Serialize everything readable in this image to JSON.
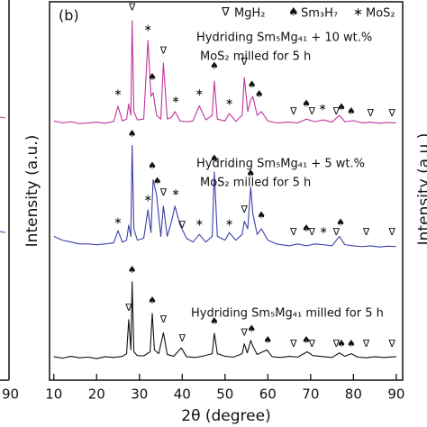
{
  "chart_data": {
    "type": "line",
    "panel_label": "(b)",
    "xlabel": "2θ (degree)",
    "ylabel": "Intensity (a.u.)",
    "xlim": [
      9,
      91.5
    ],
    "xticks": [
      10,
      20,
      30,
      40,
      50,
      60,
      70,
      80,
      90
    ],
    "ylim": [
      0,
      100
    ],
    "left_panel": {
      "xtick": "90"
    },
    "right_panel": {
      "ylabel": "Intensity (a.u.)"
    },
    "phases": [
      {
        "symbol": "∇",
        "name": "MgH₂"
      },
      {
        "symbol": "♠",
        "name": "Sm₃H₇"
      },
      {
        "symbol": "∗",
        "name": "MoS₂"
      }
    ],
    "series": [
      {
        "color": "#c0359e",
        "label_lines": [
          "Hydriding Sm₅Mg₄₁ + 10 wt.%",
          "MoS₂ milled for 5 h"
        ],
        "x": [
          10,
          12,
          14,
          16,
          18,
          20,
          22,
          24,
          25,
          26,
          27,
          27.5,
          28,
          28.3,
          28.7,
          29.5,
          31,
          32,
          32.7,
          33.2,
          34,
          35,
          35.6,
          36.5,
          37.5,
          38.3,
          39.5,
          41,
          42.5,
          44,
          45.5,
          47,
          47.5,
          48.2,
          50,
          51,
          52.5,
          54,
          54.5,
          55.3,
          56,
          56.5,
          57.5,
          58.5,
          60,
          62,
          65,
          67,
          69,
          71,
          73,
          75,
          76.7,
          78,
          80,
          82,
          84,
          86,
          88,
          90
        ],
        "values": [
          68.5,
          68,
          68.3,
          67.8,
          68,
          68.2,
          67.9,
          68.4,
          72.4,
          68.5,
          69,
          73,
          70,
          95,
          71,
          68.8,
          69,
          89.8,
          75,
          76,
          70,
          69,
          83.8,
          69,
          69.5,
          71,
          68.5,
          68.3,
          68.5,
          72.5,
          68.8,
          70,
          79,
          69,
          68.5,
          70.5,
          68.4,
          70,
          80,
          71,
          74,
          75,
          70,
          71,
          68.5,
          68,
          68.2,
          68,
          69,
          68.3,
          68.8,
          68.2,
          70,
          68.3,
          68.6,
          68,
          68.2,
          67.9,
          68.1,
          68
        ],
        "markers": [
          {
            "x": 25,
            "y": 76,
            "phase": 2
          },
          {
            "x": 28.3,
            "y": 98.5,
            "phase": 0
          },
          {
            "x": 32,
            "y": 93,
            "phase": 2
          },
          {
            "x": 33,
            "y": 80,
            "phase": 1
          },
          {
            "x": 35.6,
            "y": 87,
            "phase": 0
          },
          {
            "x": 38.5,
            "y": 74,
            "phase": 2
          },
          {
            "x": 44,
            "y": 76,
            "phase": 2
          },
          {
            "x": 47.5,
            "y": 83,
            "phase": 1
          },
          {
            "x": 51,
            "y": 73.5,
            "phase": 2
          },
          {
            "x": 54.5,
            "y": 84,
            "phase": 0
          },
          {
            "x": 56.3,
            "y": 78,
            "phase": 1
          },
          {
            "x": 58,
            "y": 75.5,
            "phase": 1
          },
          {
            "x": 66,
            "y": 71,
            "phase": 0
          },
          {
            "x": 69,
            "y": 73,
            "phase": 1
          },
          {
            "x": 70.3,
            "y": 71,
            "phase": 0
          },
          {
            "x": 72.8,
            "y": 72,
            "phase": 2
          },
          {
            "x": 76,
            "y": 71,
            "phase": 0
          },
          {
            "x": 77.2,
            "y": 72,
            "phase": 1
          },
          {
            "x": 79.5,
            "y": 71,
            "phase": 1
          },
          {
            "x": 84,
            "y": 70.5,
            "phase": 0
          },
          {
            "x": 89,
            "y": 70.5,
            "phase": 0
          }
        ]
      },
      {
        "color": "#3b3fa8",
        "label_lines": [
          "Hydriding Sm₅Mg₄₁ + 5 wt.%",
          "MoS₂ milled for 5 h"
        ],
        "x": [
          10,
          12,
          14,
          16,
          18,
          20,
          22,
          24,
          25,
          26,
          27,
          27.5,
          28,
          28.3,
          28.7,
          29.5,
          31,
          32,
          32.7,
          33.2,
          34,
          35,
          35.6,
          36.5,
          37.5,
          38.3,
          39.5,
          41,
          42.5,
          44,
          45.5,
          47,
          47.5,
          48.2,
          50,
          51,
          52.5,
          54,
          54.5,
          55.3,
          56,
          56.5,
          57.5,
          58.5,
          60,
          62,
          65,
          67,
          69,
          71,
          73,
          75,
          76.7,
          78,
          80,
          82,
          84,
          86,
          88,
          90
        ],
        "values": [
          38,
          37,
          36.5,
          36,
          36,
          35.8,
          36,
          36.3,
          39.5,
          36.5,
          37,
          41,
          38,
          62,
          40,
          37,
          37.5,
          45,
          39,
          53,
          49,
          38,
          46,
          38,
          42,
          46,
          41,
          37.5,
          36.5,
          38.5,
          36.5,
          38,
          55,
          38,
          37,
          39,
          37,
          38.5,
          42,
          40,
          51,
          44,
          38.5,
          40,
          37,
          36,
          35.5,
          36,
          35.5,
          36,
          35.8,
          35.5,
          38,
          35.8,
          35.5,
          35.3,
          35.5,
          35.2,
          35.4,
          35.3
        ],
        "markers": [
          {
            "x": 25,
            "y": 42,
            "phase": 2
          },
          {
            "x": 28.3,
            "y": 65,
            "phase": 1
          },
          {
            "x": 32,
            "y": 48,
            "phase": 2
          },
          {
            "x": 33,
            "y": 56.5,
            "phase": 1
          },
          {
            "x": 34.2,
            "y": 52.5,
            "phase": 1
          },
          {
            "x": 35.6,
            "y": 49.5,
            "phase": 0
          },
          {
            "x": 38.5,
            "y": 49.5,
            "phase": 2
          },
          {
            "x": 40,
            "y": 41,
            "phase": 0
          },
          {
            "x": 44,
            "y": 41.5,
            "phase": 2
          },
          {
            "x": 47.5,
            "y": 58.5,
            "phase": 1
          },
          {
            "x": 51,
            "y": 41.5,
            "phase": 2
          },
          {
            "x": 54.5,
            "y": 45,
            "phase": 0
          },
          {
            "x": 56,
            "y": 54.5,
            "phase": 1
          },
          {
            "x": 58.5,
            "y": 43.5,
            "phase": 1
          },
          {
            "x": 66,
            "y": 39,
            "phase": 0
          },
          {
            "x": 69,
            "y": 40,
            "phase": 1
          },
          {
            "x": 70.3,
            "y": 39,
            "phase": 0
          },
          {
            "x": 73,
            "y": 39.5,
            "phase": 2
          },
          {
            "x": 76,
            "y": 39,
            "phase": 0
          },
          {
            "x": 77,
            "y": 41.5,
            "phase": 1
          },
          {
            "x": 83,
            "y": 39,
            "phase": 0
          },
          {
            "x": 89,
            "y": 39,
            "phase": 0
          }
        ]
      },
      {
        "color": "#111111",
        "label_lines": [
          "Hydriding Sm₅Mg₄₁ milled for 5 h"
        ],
        "x": [
          10,
          12,
          14,
          16,
          18,
          20,
          22,
          24,
          26,
          27,
          27.5,
          28,
          28.3,
          28.7,
          29.5,
          31,
          32.5,
          33,
          33.5,
          34.5,
          35.6,
          36.5,
          38,
          39.8,
          41,
          43,
          45,
          47,
          47.5,
          48.2,
          50,
          52,
          54,
          54.5,
          55.2,
          56,
          56.5,
          57.5,
          59.8,
          61,
          63,
          65,
          67,
          69.2,
          70.5,
          73,
          75,
          76.7,
          78,
          79.5,
          81,
          83,
          85,
          87,
          90
        ],
        "values": [
          6.2,
          5.8,
          6.3,
          5.9,
          6.1,
          5.7,
          6.2,
          6.0,
          6.3,
          7.0,
          16,
          8,
          26,
          7.5,
          6.5,
          6.4,
          7.5,
          17.6,
          8,
          7,
          12.5,
          6.8,
          6.3,
          8.5,
          6.2,
          6.0,
          6.4,
          7,
          12.4,
          7,
          6.3,
          6.1,
          7,
          9.6,
          7.2,
          10.5,
          9,
          6.8,
          8,
          6.2,
          6.0,
          6.3,
          6.1,
          7.5,
          6.5,
          6.2,
          6.0,
          7.2,
          6.3,
          7,
          6.1,
          5.9,
          6.2,
          6.0,
          6.2
        ],
        "markers": [
          {
            "x": 27.5,
            "y": 19,
            "phase": 0
          },
          {
            "x": 28.3,
            "y": 29,
            "phase": 1
          },
          {
            "x": 33,
            "y": 21,
            "phase": 1
          },
          {
            "x": 35.6,
            "y": 16,
            "phase": 0
          },
          {
            "x": 40,
            "y": 11,
            "phase": 0
          },
          {
            "x": 47.5,
            "y": 15.5,
            "phase": 1
          },
          {
            "x": 54.5,
            "y": 12.5,
            "phase": 0
          },
          {
            "x": 56.2,
            "y": 13.5,
            "phase": 1
          },
          {
            "x": 60,
            "y": 10.5,
            "phase": 1
          },
          {
            "x": 66,
            "y": 9.5,
            "phase": 0
          },
          {
            "x": 69,
            "y": 10.5,
            "phase": 1
          },
          {
            "x": 70.3,
            "y": 9.5,
            "phase": 0
          },
          {
            "x": 76,
            "y": 9.5,
            "phase": 0
          },
          {
            "x": 77.2,
            "y": 9.5,
            "phase": 1
          },
          {
            "x": 79.5,
            "y": 9.5,
            "phase": 1
          },
          {
            "x": 83,
            "y": 9.5,
            "phase": 0
          },
          {
            "x": 89,
            "y": 9.5,
            "phase": 0
          }
        ]
      }
    ]
  }
}
